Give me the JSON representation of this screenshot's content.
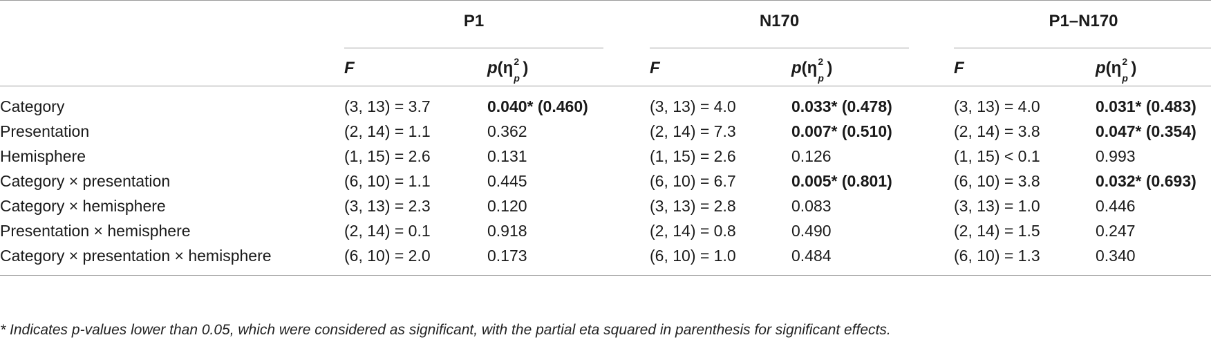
{
  "table": {
    "groups": [
      "P1",
      "N170",
      "P1–N170"
    ],
    "col_f": "F",
    "col_p": "p",
    "col_eta_symbol": "η",
    "col_eta_sup": "2",
    "col_eta_sub": "p",
    "rows": [
      {
        "label": "Category",
        "cells": [
          {
            "f": "(3, 13) = 3.7",
            "p": "0.040* (0.460)",
            "bold": true
          },
          {
            "f": "(3, 13) = 4.0",
            "p": "0.033* (0.478)",
            "bold": true
          },
          {
            "f": "(3, 13) = 4.0",
            "p": "0.031* (0.483)",
            "bold": true
          }
        ]
      },
      {
        "label": "Presentation",
        "cells": [
          {
            "f": "(2, 14) = 1.1",
            "p": "0.362",
            "bold": false
          },
          {
            "f": "(2, 14) = 7.3",
            "p": "0.007* (0.510)",
            "bold": true
          },
          {
            "f": "(2, 14) = 3.8",
            "p": "0.047* (0.354)",
            "bold": true
          }
        ]
      },
      {
        "label": "Hemisphere",
        "cells": [
          {
            "f": "(1, 15) = 2.6",
            "p": "0.131",
            "bold": false
          },
          {
            "f": "(1, 15) = 2.6",
            "p": "0.126",
            "bold": false
          },
          {
            "f": "(1, 15) < 0.1",
            "p": "0.993",
            "bold": false
          }
        ]
      },
      {
        "label": "Category × presentation",
        "cells": [
          {
            "f": "(6, 10) = 1.1",
            "p": "0.445",
            "bold": false
          },
          {
            "f": "(6, 10) = 6.7",
            "p": "0.005* (0.801)",
            "bold": true
          },
          {
            "f": "(6, 10) = 3.8",
            "p": "0.032* (0.693)",
            "bold": true
          }
        ]
      },
      {
        "label": "Category × hemisphere",
        "cells": [
          {
            "f": "(3, 13) = 2.3",
            "p": "0.120",
            "bold": false
          },
          {
            "f": "(3, 13) = 2.8",
            "p": "0.083",
            "bold": false
          },
          {
            "f": "(3, 13) = 1.0",
            "p": "0.446",
            "bold": false
          }
        ]
      },
      {
        "label": "Presentation × hemisphere",
        "cells": [
          {
            "f": "(2, 14) = 0.1",
            "p": "0.918",
            "bold": false
          },
          {
            "f": "(2, 14) = 0.8",
            "p": "0.490",
            "bold": false
          },
          {
            "f": "(2, 14) = 1.5",
            "p": "0.247",
            "bold": false
          }
        ]
      },
      {
        "label": "Category × presentation × hemisphere",
        "cells": [
          {
            "f": "(6, 10) = 2.0",
            "p": "0.173",
            "bold": false
          },
          {
            "f": "(6, 10) = 1.0",
            "p": "0.484",
            "bold": false
          },
          {
            "f": "(6, 10) = 1.3",
            "p": "0.340",
            "bold": false
          }
        ]
      }
    ],
    "footnote": "* Indicates p-values lower than 0.05, which were considered as significant, with the partial eta squared in parenthesis for significant effects."
  }
}
